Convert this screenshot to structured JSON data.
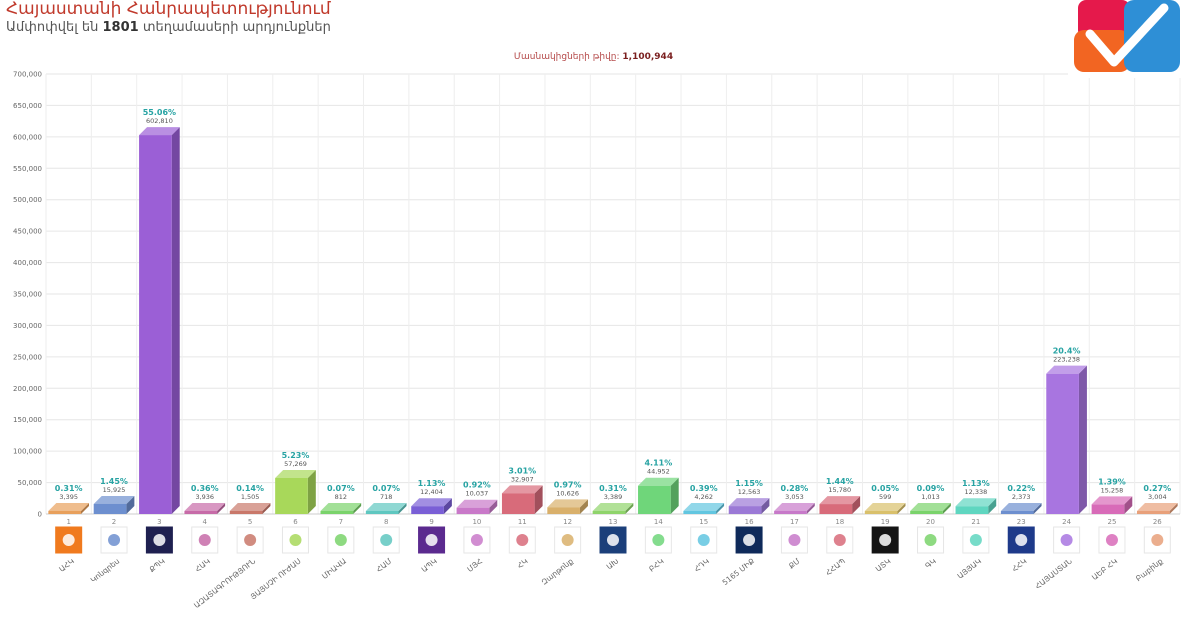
{
  "header": {
    "title": "Հայաստանի Հանրապետությունում",
    "subtitle_pre": "Ամփոփվել են ",
    "subtitle_count": "1801",
    "subtitle_post": " տեղամասերի արդյունքներ",
    "voters_label": "Մասնակիցների թիվը: ",
    "voters_value": "1,100,944"
  },
  "logo": {
    "colors": [
      "#e5194b",
      "#f26522",
      "#2e8fd6"
    ]
  },
  "chart_data": {
    "type": "bar",
    "ylim": [
      0,
      700000
    ],
    "yticks": [
      "0",
      "50,000",
      "100,000",
      "150,000",
      "200,000",
      "250,000",
      "300,000",
      "350,000",
      "400,000",
      "450,000",
      "500,000",
      "550,000",
      "600,000",
      "650,000",
      "700,000"
    ],
    "numbers": [
      "1",
      "2",
      "3",
      "4",
      "5",
      "6",
      "7",
      "8",
      "9",
      "10",
      "11",
      "12",
      "13",
      "14",
      "15",
      "16",
      "17",
      "18",
      "19",
      "20",
      "21",
      "23",
      "24",
      "25",
      "26"
    ],
    "categories": [
      "ԱՀԿ",
      "Կոնգրես",
      "ՔՊԿ",
      "ՀԱԿ",
      "ԱԶԱՏԱԳՐՈՒԹՅՈՒՆ",
      "ՅԱՅՍՉԻ ՈՒԺԱՍ",
      "ՄԻԱՎԱ",
      "ՀԱՄ",
      "ԱՊԿ",
      "ՄՅՀ",
      "ՀԿ",
      "Զարթոնք",
      "ԱԽ",
      "ԲՀԿ",
      "ՀԴԿ",
      "5165 ՄԻՔ",
      "ՔՄ",
      "ՀՀԱՊ",
      "ԱՏԿ",
      "ԳԿ",
      "ԱՅՅԱԿ",
      "ՀՀԿ",
      "ՀԱՅԱՍՏԱՆ",
      "ԱԵԲ ՀԿ",
      "Բաբինք"
    ],
    "values": [
      3395,
      15925,
      602810,
      3936,
      1505,
      57269,
      812,
      718,
      12404,
      10037,
      32907,
      10626,
      3389,
      44952,
      4262,
      12563,
      3053,
      15780,
      599,
      1013,
      12338,
      2373,
      223238,
      15258,
      3004
    ],
    "value_labels": [
      "3,395",
      "15,925",
      "602,810",
      "3,936",
      "1,505",
      "57,269",
      "812",
      "718",
      "12,404",
      "10,037",
      "32,907",
      "10,626",
      "3,389",
      "44,952",
      "4,262",
      "12,563",
      "3,053",
      "15,780",
      "599",
      "1,013",
      "12,338",
      "2,373",
      "223,238",
      "15,258",
      "3,004"
    ],
    "percents": [
      "0.31%",
      "1.45%",
      "55.06%",
      "0.36%",
      "0.14%",
      "5.23%",
      "0.07%",
      "0.07%",
      "1.13%",
      "0.92%",
      "3.01%",
      "0.97%",
      "0.31%",
      "4.11%",
      "0.39%",
      "1.15%",
      "0.28%",
      "1.44%",
      "0.05%",
      "0.09%",
      "1.13%",
      "0.22%",
      "20.4%",
      "1.39%",
      "0.27%"
    ],
    "colors": [
      "#e8a05c",
      "#6d8fcf",
      "#9b5fd6",
      "#c76ba8",
      "#c9786a",
      "#a8d85a",
      "#7ad36b",
      "#5fc7c0",
      "#7a5fd6",
      "#c979c9",
      "#d86b7a",
      "#d9b06b",
      "#8fd46b",
      "#6fd67a",
      "#62c6e0",
      "#9b79d6",
      "#c779c9",
      "#d86b7a",
      "#d9c06b",
      "#7ad36b",
      "#5fd6c0",
      "#6d8fcf",
      "#a875e0",
      "#d86bb8",
      "#e8a07a"
    ],
    "logo_colors": [
      "#f07a1e",
      "#ffffff",
      "#1f2050",
      "#ffffff",
      "#ffffff",
      "#ffffff",
      "#ffffff",
      "#ffffff",
      "#5b2a8f",
      "#ffffff",
      "#ffffff",
      "#ffffff",
      "#1b3f7a",
      "#ffffff",
      "#ffffff",
      "#0f2a5a",
      "#ffffff",
      "#ffffff",
      "#141414",
      "#ffffff",
      "#ffffff",
      "#1e3a8a",
      "#ffffff",
      "#ffffff",
      "#ffffff"
    ],
    "grid": true
  }
}
